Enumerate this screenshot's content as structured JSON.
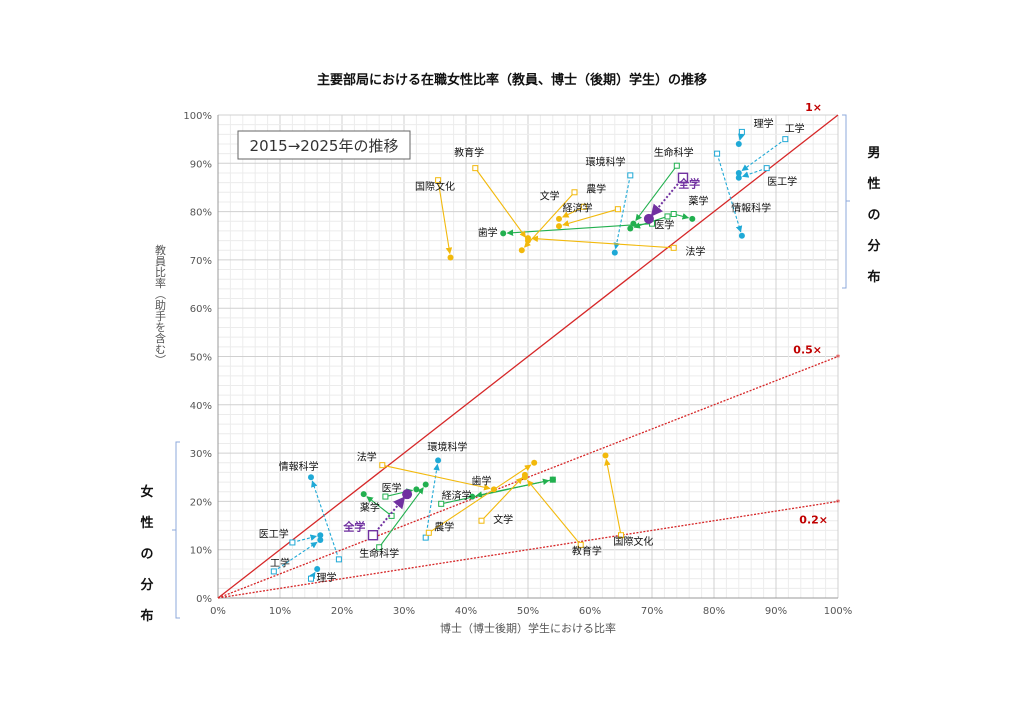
{
  "chart_data": {
    "type": "scatter",
    "title": "主要部局における在職女性比率（教員、博士（後期）学生）の推移",
    "xlabel": "博士（博士後期）学生における比率",
    "ylabel": "教員比率（助手を含む）",
    "xlim": [
      0,
      100
    ],
    "ylim": [
      0,
      100
    ],
    "x_ticks": [
      "0%",
      "10%",
      "20%",
      "30%",
      "40%",
      "50%",
      "60%",
      "70%",
      "80%",
      "90%",
      "100%"
    ],
    "y_ticks": [
      "0%",
      "10%",
      "20%",
      "30%",
      "40%",
      "50%",
      "60%",
      "70%",
      "80%",
      "90%",
      "100%"
    ],
    "grid": true,
    "annotation": "2015→2025年の推移",
    "reference_lines": [
      {
        "label": "1×",
        "slope": 1,
        "color": "#d62728",
        "style": "solid"
      },
      {
        "label": "0.5×",
        "slope": 0.5,
        "color": "#d62728",
        "style": "dotted"
      },
      {
        "label": "0.2×",
        "slope": 0.2,
        "color": "#d62728",
        "style": "dotted"
      }
    ],
    "group_labels": {
      "male": "男性の分布",
      "female": "女性の分布"
    },
    "marker_legend": {
      "start": "2015 (hollow square)",
      "end": "2025 (filled circle)"
    },
    "series": [
      {
        "group": "male",
        "name": "理学",
        "color": "#1fa9d6",
        "from": [
          84.5,
          96.5
        ],
        "to": [
          84,
          94
        ],
        "label_at": [
          88,
          97.5
        ]
      },
      {
        "group": "male",
        "name": "工学",
        "color": "#1fa9d6",
        "from": [
          91.5,
          95
        ],
        "to": [
          84,
          88
        ],
        "label_at": [
          93,
          96.5
        ]
      },
      {
        "group": "male",
        "name": "医工学",
        "color": "#1fa9d6",
        "from": [
          88.5,
          89
        ],
        "to": [
          84,
          87
        ],
        "label_at": [
          91,
          85.5
        ]
      },
      {
        "group": "male",
        "name": "情報科学",
        "color": "#1fa9d6",
        "from": [
          80.5,
          92
        ],
        "to": [
          84.5,
          75
        ],
        "label_at": [
          86,
          80
        ]
      },
      {
        "group": "male",
        "name": "環境科学",
        "color": "#1fa9d6",
        "from": [
          66.5,
          87.5
        ],
        "to": [
          64,
          71.5
        ],
        "label_at": [
          62.5,
          89.5
        ]
      },
      {
        "group": "male",
        "name": "生命科学",
        "color": "#22b04f",
        "from": [
          74,
          89.5
        ],
        "to": [
          67,
          77.5
        ],
        "label_at": [
          73.5,
          91.5
        ]
      },
      {
        "group": "male",
        "name": "薬学",
        "color": "#22b04f",
        "from": [
          73.5,
          79.5
        ],
        "to": [
          76.5,
          78.5
        ],
        "label_at": [
          77.5,
          81.5
        ]
      },
      {
        "group": "male",
        "name": "医学",
        "color": "#22b04f",
        "from": [
          72.5,
          79
        ],
        "to": [
          66.5,
          76.5
        ],
        "label_at": [
          72,
          76.5
        ]
      },
      {
        "group": "male",
        "name": "歯学",
        "color": "#22b04f",
        "from": [
          70,
          77.5
        ],
        "to": [
          46,
          75.5
        ],
        "label_at": [
          43.5,
          75
        ]
      },
      {
        "group": "male",
        "name": "農学",
        "color": "#f2b90c",
        "from": [
          64.5,
          80.5
        ],
        "to": [
          55,
          77
        ],
        "label_at": [
          61,
          84
        ]
      },
      {
        "group": "male",
        "name": "経済学",
        "color": "#f2b90c",
        "from": [
          59,
          81
        ],
        "to": [
          55,
          78.5
        ],
        "label_at": [
          58,
          80
        ]
      },
      {
        "group": "male",
        "name": "文学",
        "color": "#f2b90c",
        "from": [
          57.5,
          84
        ],
        "to": [
          49,
          72
        ],
        "label_at": [
          53.5,
          82.5
        ]
      },
      {
        "group": "male",
        "name": "法学",
        "color": "#f2b90c",
        "from": [
          73.5,
          72.5
        ],
        "to": [
          50,
          74.5
        ],
        "label_at": [
          77,
          71
        ]
      },
      {
        "group": "male",
        "name": "教育学",
        "color": "#f2b90c",
        "from": [
          41.5,
          89
        ],
        "to": [
          50,
          74
        ],
        "label_at": [
          40.5,
          91.5
        ]
      },
      {
        "group": "male",
        "name": "国際文化",
        "color": "#f2b90c",
        "from": [
          35.5,
          86.5
        ],
        "to": [
          37.5,
          70.5
        ],
        "label_at": [
          35,
          84.5
        ]
      },
      {
        "group": "male",
        "name": "全学",
        "color": "#7030a0",
        "from": [
          75,
          87
        ],
        "to": [
          69.5,
          78.5
        ],
        "label_at": [
          76,
          85
        ]
      },
      {
        "group": "female",
        "name": "理学",
        "color": "#1fa9d6",
        "from": [
          15,
          4
        ],
        "to": [
          16,
          6
        ],
        "label_at": [
          17.5,
          3.5
        ]
      },
      {
        "group": "female",
        "name": "工学",
        "color": "#1fa9d6",
        "from": [
          9,
          5.5
        ],
        "to": [
          16.5,
          12
        ],
        "label_at": [
          10,
          6.5
        ]
      },
      {
        "group": "female",
        "name": "医工学",
        "color": "#1fa9d6",
        "from": [
          12,
          11.5
        ],
        "to": [
          16.5,
          13
        ],
        "label_at": [
          9,
          12.5
        ]
      },
      {
        "group": "female",
        "name": "情報科学",
        "color": "#1fa9d6",
        "from": [
          19.5,
          8
        ],
        "to": [
          15,
          25
        ],
        "label_at": [
          13,
          26.5
        ]
      },
      {
        "group": "female",
        "name": "環境科学",
        "color": "#1fa9d6",
        "from": [
          33.5,
          12.5
        ],
        "to": [
          35.5,
          28.5
        ],
        "label_at": [
          37,
          30.5
        ]
      },
      {
        "group": "female",
        "name": "生命科学",
        "color": "#22b04f",
        "from": [
          26,
          10.5
        ],
        "to": [
          33.5,
          23.5
        ],
        "label_at": [
          26,
          8.5
        ]
      },
      {
        "group": "female",
        "name": "医学",
        "color": "#22b04f",
        "from": [
          27,
          21
        ],
        "to": [
          32,
          22.5
        ],
        "label_at": [
          28,
          22
        ]
      },
      {
        "group": "female",
        "name": "薬学",
        "color": "#22b04f",
        "from": [
          28,
          17
        ],
        "to": [
          23.5,
          21.5
        ],
        "label_at": [
          24.5,
          18
        ]
      },
      {
        "group": "female",
        "name": "歯学",
        "color": "#22b04f",
        "from": [
          54,
          24.5
        ],
        "to": [
          41,
          21
        ],
        "label_at": [
          42.5,
          23.5
        ]
      },
      {
        "group": "female",
        "name": "経済学",
        "color": "#22b04f",
        "from": [
          36,
          19.5
        ],
        "to": [
          54,
          24.5
        ],
        "label_at": [
          38.5,
          20.5
        ]
      },
      {
        "group": "female",
        "name": "農学",
        "color": "#f2b90c",
        "from": [
          34,
          13.5
        ],
        "to": [
          51,
          28
        ],
        "label_at": [
          36.5,
          14
        ]
      },
      {
        "group": "female",
        "name": "文学",
        "color": "#f2b90c",
        "from": [
          42.5,
          16
        ],
        "to": [
          49.5,
          25.5
        ],
        "label_at": [
          46,
          15.5
        ]
      },
      {
        "group": "female",
        "name": "法学",
        "color": "#f2b90c",
        "from": [
          26.5,
          27.5
        ],
        "to": [
          44.5,
          22.5
        ],
        "label_at": [
          24,
          28.5
        ]
      },
      {
        "group": "female",
        "name": "教育学",
        "color": "#f2b90c",
        "from": [
          58.5,
          11
        ],
        "to": [
          49.5,
          25
        ],
        "label_at": [
          59.5,
          9
        ]
      },
      {
        "group": "female",
        "name": "国際文化",
        "color": "#f2b90c",
        "from": [
          65,
          13
        ],
        "to": [
          62.5,
          29.5
        ],
        "label_at": [
          67,
          11
        ]
      },
      {
        "group": "female",
        "name": "全学",
        "color": "#7030a0",
        "from": [
          25,
          13
        ],
        "to": [
          30.5,
          21.5
        ],
        "label_at": [
          22,
          14
        ]
      }
    ]
  }
}
